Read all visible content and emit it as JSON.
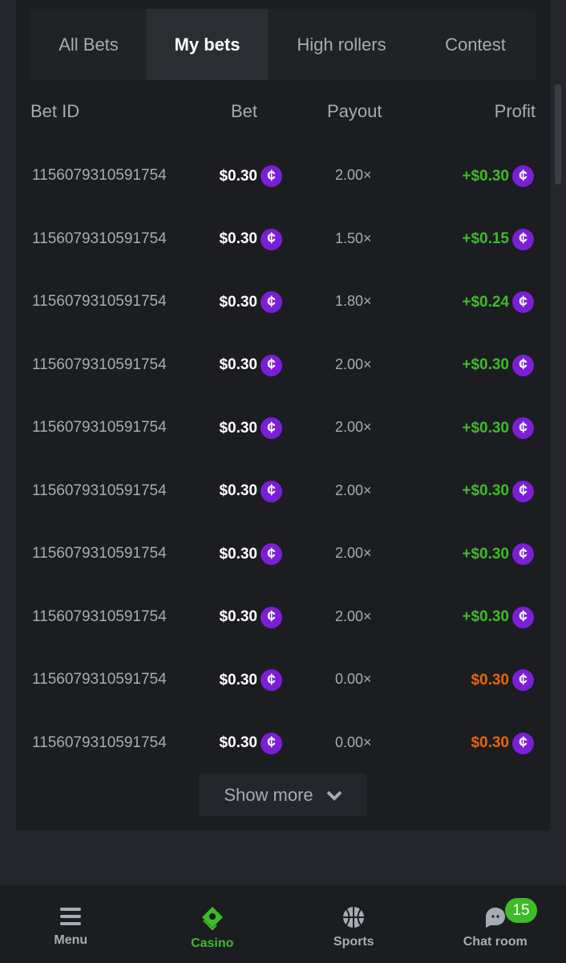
{
  "tabs": [
    {
      "label": "All Bets"
    },
    {
      "label": "My bets",
      "active": true
    },
    {
      "label": "High rollers"
    },
    {
      "label": "Contest"
    }
  ],
  "columns": {
    "bet_id": "Bet ID",
    "bet": "Bet",
    "payout": "Payout",
    "profit": "Profit"
  },
  "coin_icon": "cent-coin-icon",
  "colors": {
    "win": "#3fbb2a",
    "loss": "#e8650e",
    "coin": "#7b1fd6"
  },
  "rows": [
    {
      "id": "1156079310591754",
      "bet": "$0.30",
      "payout": "2.00×",
      "profit": "+$0.30",
      "status": "win"
    },
    {
      "id": "1156079310591754",
      "bet": "$0.30",
      "payout": "1.50×",
      "profit": "+$0.15",
      "status": "win"
    },
    {
      "id": "1156079310591754",
      "bet": "$0.30",
      "payout": "1.80×",
      "profit": "+$0.24",
      "status": "win"
    },
    {
      "id": "1156079310591754",
      "bet": "$0.30",
      "payout": "2.00×",
      "profit": "+$0.30",
      "status": "win"
    },
    {
      "id": "1156079310591754",
      "bet": "$0.30",
      "payout": "2.00×",
      "profit": "+$0.30",
      "status": "win"
    },
    {
      "id": "1156079310591754",
      "bet": "$0.30",
      "payout": "2.00×",
      "profit": "+$0.30",
      "status": "win"
    },
    {
      "id": "1156079310591754",
      "bet": "$0.30",
      "payout": "2.00×",
      "profit": "+$0.30",
      "status": "win"
    },
    {
      "id": "1156079310591754",
      "bet": "$0.30",
      "payout": "2.00×",
      "profit": "+$0.30",
      "status": "win"
    },
    {
      "id": "1156079310591754",
      "bet": "$0.30",
      "payout": "0.00×",
      "profit": "$0.30",
      "status": "loss"
    },
    {
      "id": "1156079310591754",
      "bet": "$0.30",
      "payout": "0.00×",
      "profit": "$0.30",
      "status": "loss"
    }
  ],
  "show_more": "Show more",
  "nav": [
    {
      "label": "Menu",
      "icon": "menu-icon"
    },
    {
      "label": "Casino",
      "icon": "casino-cards-icon",
      "active": true
    },
    {
      "label": "Sports",
      "icon": "basketball-icon"
    },
    {
      "label": "Chat room",
      "icon": "chat-ghost-icon"
    }
  ],
  "chat_badge": "15"
}
